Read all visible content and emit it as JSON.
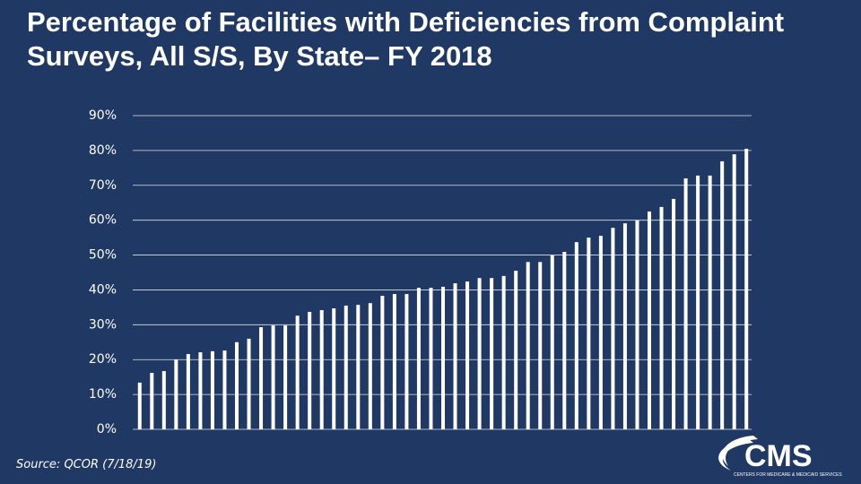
{
  "chart_data": {
    "type": "bar",
    "title": "Percentage of Facilities with Deficiencies from Complaint Surveys, All S/S, By State– FY 2018",
    "categories": [
      null,
      null,
      null,
      null,
      null,
      null,
      null,
      null,
      null,
      null,
      null,
      null,
      null,
      null,
      null,
      null,
      null,
      null,
      null,
      null,
      null,
      null,
      null,
      null,
      null,
      null,
      null,
      null,
      null,
      null,
      null,
      null,
      null,
      null,
      null,
      null,
      null,
      null,
      null,
      null,
      null,
      null,
      null,
      null,
      null,
      null,
      null,
      null,
      null,
      null,
      null
    ],
    "values": [
      13.4,
      16.2,
      16.7,
      20,
      21.6,
      22.1,
      22.4,
      22.6,
      25,
      26,
      29.3,
      29.8,
      29.8,
      32.6,
      33.7,
      34.2,
      34.7,
      35.5,
      35.7,
      36.2,
      38.3,
      38.8,
      38.8,
      40.6,
      40.6,
      40.9,
      41.9,
      42.4,
      43.4,
      43.4,
      44,
      45.5,
      48,
      48,
      49.9,
      50.9,
      53.7,
      55,
      55.5,
      57.8,
      59.1,
      59.9,
      62.5,
      63.8,
      66.1,
      72,
      72.8,
      72.8,
      76.9,
      78.9,
      80.5
    ],
    "color": "#ffffff",
    "ylim": [
      0,
      90
    ],
    "yticks": [
      {
        "value": 0,
        "label": "0%"
      },
      {
        "value": 10,
        "label": "10%"
      },
      {
        "value": 20,
        "label": "20%"
      },
      {
        "value": 30,
        "label": "30%"
      },
      {
        "value": 40,
        "label": "40%"
      },
      {
        "value": 50,
        "label": "50%"
      },
      {
        "value": 60,
        "label": "60%"
      },
      {
        "value": 70,
        "label": "70%"
      },
      {
        "value": 80,
        "label": "80%"
      },
      {
        "value": 90,
        "label": "90%"
      }
    ],
    "grid": true,
    "source": "Source: QCOR (7/18/19)"
  },
  "logo": {
    "name": "CMS",
    "tagline": "CENTERS FOR MEDICARE & MEDICAID SERVICES"
  }
}
